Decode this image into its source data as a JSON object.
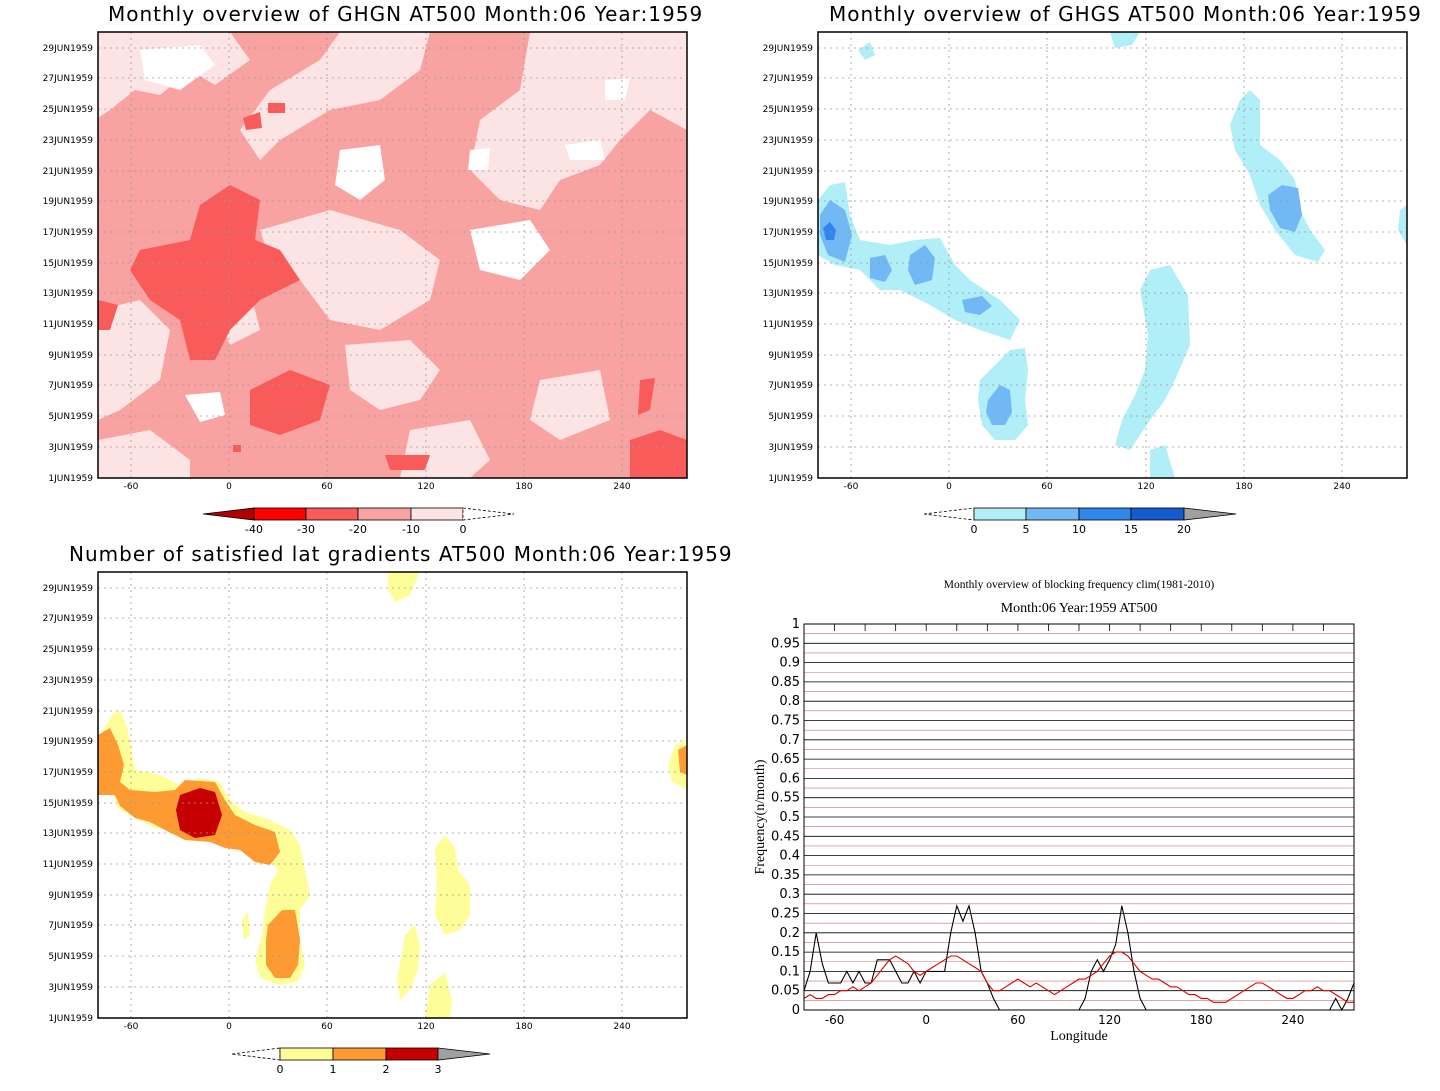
{
  "panels": {
    "ghgn": {
      "title": "Monthly overview of GHGN AT500 Month:06 Year:1959",
      "y_ticks": [
        "29JUN1959",
        "27JUN1959",
        "25JUN1959",
        "23JUN1959",
        "21JUN1959",
        "19JUN1959",
        "17JUN1959",
        "15JUN1959",
        "13JUN1959",
        "11JUN1959",
        "9JUN1959",
        "7JUN1959",
        "5JUN1959",
        "3JUN1959",
        "1JUN1959"
      ],
      "x_ticks": [
        "-60",
        "0",
        "60",
        "120",
        "180",
        "240"
      ],
      "colorbar": {
        "labels": [
          "-40",
          "-30",
          "-20",
          "-10",
          "0"
        ],
        "colors": [
          "#b00000",
          "#ff0000",
          "#f95a5a",
          "#f9a2a2",
          "#fde4e4",
          "#ffffff"
        ]
      }
    },
    "ghgs": {
      "title": "Monthly overview of GHGS AT500 Month:06 Year:1959",
      "y_ticks": [
        "29JUN1959",
        "27JUN1959",
        "25JUN1959",
        "23JUN1959",
        "21JUN1959",
        "19JUN1959",
        "17JUN1959",
        "15JUN1959",
        "13JUN1959",
        "11JUN1959",
        "9JUN1959",
        "7JUN1959",
        "5JUN1959",
        "3JUN1959",
        "1JUN1959"
      ],
      "x_ticks": [
        "-60",
        "0",
        "60",
        "120",
        "180",
        "240"
      ],
      "colorbar": {
        "labels": [
          "0",
          "5",
          "10",
          "15",
          "20"
        ],
        "colors": [
          "#ffffff",
          "#b0eef8",
          "#72b8f4",
          "#2f87ec",
          "#135cd0",
          "#a0a0a0"
        ]
      }
    },
    "lat": {
      "title": "Number of satisfied lat gradients AT500 Month:06 Year:1959",
      "y_ticks": [
        "29JUN1959",
        "27JUN1959",
        "25JUN1959",
        "23JUN1959",
        "21JUN1959",
        "19JUN1959",
        "17JUN1959",
        "15JUN1959",
        "13JUN1959",
        "11JUN1959",
        "9JUN1959",
        "7JUN1959",
        "5JUN1959",
        "3JUN1959",
        "1JUN1959"
      ],
      "x_ticks": [
        "-60",
        "0",
        "60",
        "120",
        "180",
        "240"
      ],
      "colorbar": {
        "labels": [
          "0",
          "1",
          "2",
          "3"
        ],
        "colors": [
          "#ffffff",
          "#fefe98",
          "#fd9a32",
          "#c60000",
          "#a0a0a0"
        ]
      }
    },
    "freq": {
      "title": "Monthly overview of blocking frequency clim(1981-2010)",
      "subtitle": "Month:06 Year:1959  AT500"
    }
  },
  "chart_data": [
    {
      "type": "heatmap",
      "title": "Monthly overview of GHGN AT500 Month:06 Year:1959",
      "x_ticks": [
        -60,
        0,
        60,
        120,
        180,
        240
      ],
      "xlim": [
        -80,
        280
      ],
      "y_ticks": [
        "1JUN1959",
        "3JUN1959",
        "5JUN1959",
        "7JUN1959",
        "9JUN1959",
        "11JUN1959",
        "13JUN1959",
        "15JUN1959",
        "17JUN1959",
        "19JUN1959",
        "21JUN1959",
        "23JUN1959",
        "25JUN1959",
        "27JUN1959",
        "29JUN1959"
      ],
      "contour_levels": [
        -40,
        -30,
        -20,
        -10,
        0
      ],
      "grid": true
    },
    {
      "type": "heatmap",
      "title": "Monthly overview of GHGS AT500 Month:06 Year:1959",
      "x_ticks": [
        -60,
        0,
        60,
        120,
        180,
        240
      ],
      "xlim": [
        -80,
        280
      ],
      "y_ticks": [
        "1JUN1959",
        "3JUN1959",
        "5JUN1959",
        "7JUN1959",
        "9JUN1959",
        "11JUN1959",
        "13JUN1959",
        "15JUN1959",
        "17JUN1959",
        "19JUN1959",
        "21JUN1959",
        "23JUN1959",
        "25JUN1959",
        "27JUN1959",
        "29JUN1959"
      ],
      "contour_levels": [
        0,
        5,
        10,
        15,
        20
      ],
      "grid": true
    },
    {
      "type": "heatmap",
      "title": "Number of satisfied lat gradients AT500 Month:06 Year:1959",
      "x_ticks": [
        -60,
        0,
        60,
        120,
        180,
        240
      ],
      "xlim": [
        -80,
        280
      ],
      "y_ticks": [
        "1JUN1959",
        "3JUN1959",
        "5JUN1959",
        "7JUN1959",
        "9JUN1959",
        "11JUN1959",
        "13JUN1959",
        "15JUN1959",
        "17JUN1959",
        "19JUN1959",
        "21JUN1959",
        "23JUN1959",
        "25JUN1959",
        "27JUN1959",
        "29JUN1959"
      ],
      "contour_levels": [
        0,
        1,
        2,
        3
      ],
      "grid": true
    },
    {
      "type": "line",
      "title": "Monthly overview of blocking frequency clim(1981-2010)",
      "subtitle": "Month:06 Year:1959  AT500",
      "xlabel": "Longitude",
      "ylabel": "Frequency(n/month)",
      "xlim": [
        -80,
        280
      ],
      "ylim": [
        0,
        1
      ],
      "x_ticks": [
        -60,
        0,
        60,
        120,
        180,
        240
      ],
      "y_ticks": [
        0,
        0.05,
        0.1,
        0.15,
        0.2,
        0.25,
        0.3,
        0.35,
        0.4,
        0.45,
        0.5,
        0.55,
        0.6,
        0.65,
        0.7,
        0.75,
        0.8,
        0.85,
        0.9,
        0.95,
        1
      ],
      "grid": true,
      "series": [
        {
          "color": "#000000",
          "x": [
            -80,
            -76,
            -72,
            -68,
            -64,
            -60,
            -56,
            -52,
            -48,
            -44,
            -40,
            -36,
            -32,
            -28,
            -24,
            -20,
            -16,
            -12,
            -8,
            -4,
            0,
            4,
            8,
            12,
            16,
            20,
            24,
            28,
            32,
            36,
            40,
            44,
            48,
            52,
            56,
            60,
            64,
            68,
            72,
            76,
            80,
            84,
            88,
            92,
            96,
            100,
            104,
            108,
            112,
            116,
            120,
            124,
            128,
            132,
            136,
            140,
            144,
            148,
            152,
            156,
            160,
            164,
            168,
            172,
            176,
            180,
            184,
            188,
            192,
            196,
            200,
            204,
            208,
            212,
            216,
            220,
            224,
            228,
            232,
            236,
            240,
            244,
            248,
            252,
            256,
            260,
            264,
            268,
            272,
            276,
            280
          ],
          "y": [
            0.05,
            0.1,
            0.2,
            0.12,
            0.07,
            0.07,
            0.07,
            0.1,
            0.07,
            0.1,
            0.07,
            0.07,
            0.13,
            0.13,
            0.13,
            0.1,
            0.07,
            0.07,
            0.1,
            0.07,
            0.1,
            0.1,
            0.1,
            0.1,
            0.2,
            0.27,
            0.23,
            0.27,
            0.2,
            0.1,
            0.07,
            0.03,
            0,
            0,
            0,
            0,
            0,
            0,
            0,
            0,
            0,
            0,
            0,
            0,
            0,
            0,
            0.03,
            0.1,
            0.13,
            0.1,
            0.13,
            0.17,
            0.27,
            0.2,
            0.1,
            0.03,
            0,
            0,
            0,
            0,
            0,
            0,
            0,
            0,
            0,
            0,
            0,
            0,
            0,
            0,
            0,
            0,
            0,
            0,
            0,
            0,
            0,
            0,
            0,
            0,
            0,
            0,
            0,
            0,
            0,
            0,
            0,
            0.03,
            0,
            0.03,
            0.07
          ]
        },
        {
          "color": "#e00000",
          "x": [
            -80,
            -76,
            -72,
            -68,
            -64,
            -60,
            -56,
            -52,
            -48,
            -44,
            -40,
            -36,
            -32,
            -28,
            -24,
            -20,
            -16,
            -12,
            -8,
            -4,
            0,
            4,
            8,
            12,
            16,
            20,
            24,
            28,
            32,
            36,
            40,
            44,
            48,
            52,
            56,
            60,
            64,
            68,
            72,
            76,
            80,
            84,
            88,
            92,
            96,
            100,
            104,
            108,
            112,
            116,
            120,
            124,
            128,
            132,
            136,
            140,
            144,
            148,
            152,
            156,
            160,
            164,
            168,
            172,
            176,
            180,
            184,
            188,
            192,
            196,
            200,
            204,
            208,
            212,
            216,
            220,
            224,
            228,
            232,
            236,
            240,
            244,
            248,
            252,
            256,
            260,
            264,
            268,
            272,
            276,
            280
          ],
          "y": [
            0.03,
            0.04,
            0.03,
            0.03,
            0.04,
            0.04,
            0.05,
            0.05,
            0.06,
            0.05,
            0.06,
            0.07,
            0.09,
            0.11,
            0.13,
            0.14,
            0.13,
            0.12,
            0.1,
            0.09,
            0.1,
            0.11,
            0.12,
            0.13,
            0.14,
            0.14,
            0.13,
            0.12,
            0.11,
            0.1,
            0.07,
            0.05,
            0.05,
            0.06,
            0.07,
            0.08,
            0.07,
            0.06,
            0.07,
            0.06,
            0.05,
            0.04,
            0.05,
            0.06,
            0.07,
            0.08,
            0.08,
            0.09,
            0.1,
            0.12,
            0.14,
            0.15,
            0.15,
            0.14,
            0.12,
            0.1,
            0.09,
            0.08,
            0.08,
            0.07,
            0.06,
            0.06,
            0.05,
            0.04,
            0.04,
            0.03,
            0.03,
            0.02,
            0.02,
            0.02,
            0.03,
            0.04,
            0.05,
            0.06,
            0.07,
            0.07,
            0.06,
            0.05,
            0.04,
            0.03,
            0.03,
            0.04,
            0.05,
            0.05,
            0.06,
            0.05,
            0.05,
            0.04,
            0.03,
            0.02,
            0.02
          ]
        }
      ]
    }
  ]
}
